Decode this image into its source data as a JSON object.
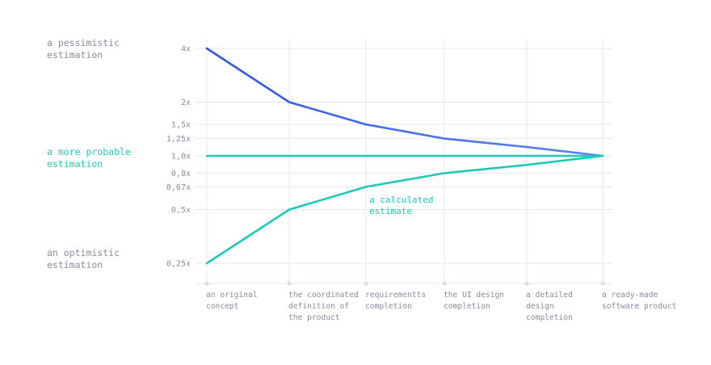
{
  "left_labels": {
    "pessimistic": [
      "a pessimistic",
      "estimation"
    ],
    "probable": [
      "a more probable",
      "estimation"
    ],
    "optimistic": [
      "an optimistic",
      "estimation"
    ]
  },
  "chart_data": {
    "type": "line",
    "y_scale": "log",
    "y_ticks": [
      {
        "value": 4,
        "label": "4x"
      },
      {
        "value": 2,
        "label": "2x"
      },
      {
        "value": 1.5,
        "label": "1,5x"
      },
      {
        "value": 1.25,
        "label": "1,25x"
      },
      {
        "value": 1.0,
        "label": "1,0x"
      },
      {
        "value": 0.8,
        "label": "0,8x"
      },
      {
        "value": 0.67,
        "label": "0,67x"
      },
      {
        "value": 0.5,
        "label": "0,5x"
      },
      {
        "value": 0.25,
        "label": "0,25x"
      }
    ],
    "categories": [
      [
        "an original",
        "concept"
      ],
      [
        "the coordinated",
        "definition of",
        "the product"
      ],
      [
        "requirementts",
        "completion"
      ],
      [
        "the UI design",
        "completion"
      ],
      [
        "a detailed",
        "design",
        "completion"
      ],
      [
        "a ready-made",
        "software product"
      ]
    ],
    "series": [
      {
        "key": "pessimistic",
        "color": "#2f55e6",
        "color_end": "#5b86ef",
        "values": [
          4,
          2,
          1.5,
          1.25,
          1.12,
          1.0
        ]
      },
      {
        "key": "probable",
        "color": "#1fc9b5",
        "values": [
          1.0,
          1.0,
          1.0,
          1.0,
          1.0,
          1.0
        ]
      },
      {
        "key": "optimistic",
        "color": "#1fc9b5",
        "values": [
          0.25,
          0.5,
          0.67,
          0.8,
          0.89,
          1.0
        ]
      }
    ],
    "annotation": {
      "text": [
        "a calculated",
        "estimate"
      ],
      "color": "#1fc9b5"
    },
    "grid": true,
    "colors": {
      "grid": "#e6e6f0",
      "tick_text": "#8a8aa3",
      "teal": "#1fc9b5",
      "blue": "#2f55e6"
    }
  }
}
